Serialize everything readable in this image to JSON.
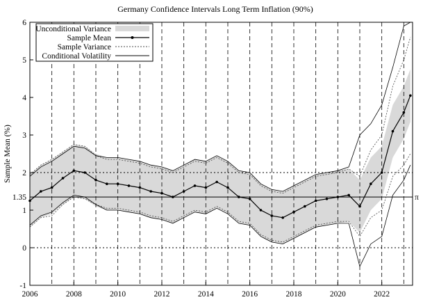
{
  "chart_data": {
    "type": "line",
    "title": "Germany Confidence Intervals Long Term Inflation (90%)",
    "xlabel": "",
    "ylabel": "Sample Mean (%)",
    "xlim": [
      2006,
      2023.4
    ],
    "ylim": [
      -1,
      6
    ],
    "x_ticks": [
      2006,
      2008,
      2010,
      2012,
      2014,
      2016,
      2018,
      2020,
      2022
    ],
    "y_ticks": [
      -1,
      0,
      1,
      2,
      3,
      4,
      5,
      6
    ],
    "y_tick_extra": {
      "value": 1.35,
      "label": "1.35"
    },
    "right_marker": {
      "value": 1.35,
      "label": "π"
    },
    "vertical_dashed_lines": [
      2007,
      2008,
      2009,
      2010,
      2011,
      2012,
      2013,
      2014,
      2015,
      2016,
      2017,
      2018,
      2019,
      2020,
      2021,
      2022,
      2023
    ],
    "horizontal_dotted_lines": [
      0,
      2
    ],
    "horizontal_solid_line": 1.35,
    "legend": {
      "placement": "top-left",
      "entries": [
        "Unconditional Variance",
        "Sample Mean",
        "Sample Variance",
        "Conditional Volatility"
      ]
    },
    "series": [
      {
        "name": "Sample Mean",
        "x": [
          2006.0,
          2006.5,
          2007.0,
          2007.5,
          2008.0,
          2008.5,
          2009.0,
          2009.5,
          2010.0,
          2010.5,
          2011.0,
          2011.5,
          2012.0,
          2012.5,
          2013.0,
          2013.5,
          2014.0,
          2014.5,
          2015.0,
          2015.5,
          2016.0,
          2016.5,
          2017.0,
          2017.5,
          2018.0,
          2018.5,
          2019.0,
          2019.5,
          2020.0,
          2020.5,
          2021.0,
          2021.5,
          2022.0,
          2022.5,
          2023.0,
          2023.3
        ],
        "values": [
          1.25,
          1.5,
          1.6,
          1.85,
          2.05,
          2.0,
          1.8,
          1.7,
          1.7,
          1.65,
          1.6,
          1.5,
          1.45,
          1.35,
          1.5,
          1.65,
          1.6,
          1.75,
          1.6,
          1.35,
          1.3,
          1.0,
          0.85,
          0.8,
          0.95,
          1.1,
          1.25,
          1.3,
          1.35,
          1.4,
          1.1,
          1.7,
          2.0,
          3.1,
          3.6,
          4.05
        ]
      },
      {
        "name": "Unconditional Variance",
        "x": [
          2006.0,
          2006.5,
          2007.0,
          2007.5,
          2008.0,
          2008.5,
          2009.0,
          2009.5,
          2010.0,
          2010.5,
          2011.0,
          2011.5,
          2012.0,
          2012.5,
          2013.0,
          2013.5,
          2014.0,
          2014.5,
          2015.0,
          2015.5,
          2016.0,
          2016.5,
          2017.0,
          2017.5,
          2018.0,
          2018.5,
          2019.0,
          2019.5,
          2020.0,
          2020.5,
          2021.0,
          2021.5,
          2022.0,
          2022.5,
          2023.0,
          2023.3
        ],
        "upper": [
          1.95,
          2.2,
          2.35,
          2.55,
          2.75,
          2.7,
          2.5,
          2.4,
          2.4,
          2.35,
          2.3,
          2.2,
          2.15,
          2.05,
          2.2,
          2.35,
          2.3,
          2.45,
          2.3,
          2.05,
          2.0,
          1.7,
          1.55,
          1.5,
          1.65,
          1.8,
          1.95,
          2.0,
          2.05,
          2.1,
          1.8,
          2.4,
          2.7,
          3.8,
          4.3,
          4.75
        ],
        "lower": [
          0.55,
          0.8,
          0.9,
          1.15,
          1.35,
          1.3,
          1.1,
          1.0,
          1.0,
          0.95,
          0.9,
          0.8,
          0.75,
          0.65,
          0.8,
          0.95,
          0.9,
          1.05,
          0.9,
          0.65,
          0.6,
          0.3,
          0.15,
          0.1,
          0.25,
          0.4,
          0.55,
          0.6,
          0.65,
          0.7,
          0.4,
          1.0,
          1.3,
          2.4,
          2.9,
          3.35
        ]
      },
      {
        "name": "Sample Variance",
        "x": [
          2006.0,
          2006.5,
          2007.0,
          2007.5,
          2008.0,
          2008.5,
          2009.0,
          2009.5,
          2010.0,
          2010.5,
          2011.0,
          2011.5,
          2012.0,
          2012.5,
          2013.0,
          2013.5,
          2014.0,
          2014.5,
          2015.0,
          2015.5,
          2016.0,
          2016.5,
          2017.0,
          2017.5,
          2018.0,
          2018.5,
          2019.0,
          2019.5,
          2020.0,
          2020.5,
          2021.0,
          2021.5,
          2022.0,
          2022.5,
          2023.0,
          2023.3
        ],
        "upper": [
          1.95,
          2.2,
          2.35,
          2.55,
          2.75,
          2.7,
          2.45,
          2.35,
          2.35,
          2.3,
          2.25,
          2.15,
          2.1,
          2.0,
          2.15,
          2.3,
          2.25,
          2.4,
          2.25,
          2.0,
          1.95,
          1.65,
          1.5,
          1.45,
          1.6,
          1.75,
          1.9,
          1.95,
          2.0,
          2.1,
          1.9,
          2.6,
          3.0,
          4.3,
          5.0,
          5.6
        ],
        "lower": [
          0.55,
          0.8,
          0.85,
          1.15,
          1.35,
          1.3,
          1.15,
          1.05,
          1.05,
          1.0,
          0.95,
          0.85,
          0.8,
          0.7,
          0.85,
          1.0,
          0.95,
          1.1,
          0.95,
          0.7,
          0.65,
          0.35,
          0.2,
          0.15,
          0.3,
          0.45,
          0.6,
          0.65,
          0.7,
          0.7,
          0.3,
          0.8,
          1.0,
          1.9,
          2.2,
          2.5
        ]
      },
      {
        "name": "Conditional Volatility",
        "x": [
          2006.0,
          2006.5,
          2007.0,
          2007.5,
          2008.0,
          2008.5,
          2009.0,
          2009.5,
          2010.0,
          2010.5,
          2011.0,
          2011.5,
          2012.0,
          2012.5,
          2013.0,
          2013.5,
          2014.0,
          2014.5,
          2015.0,
          2015.5,
          2016.0,
          2016.5,
          2017.0,
          2017.5,
          2018.0,
          2018.5,
          2019.0,
          2019.5,
          2020.0,
          2020.5,
          2021.0,
          2021.5,
          2022.0,
          2022.5,
          2023.0,
          2023.3
        ],
        "upper": [
          1.9,
          2.15,
          2.3,
          2.5,
          2.7,
          2.65,
          2.45,
          2.4,
          2.4,
          2.35,
          2.3,
          2.2,
          2.15,
          2.05,
          2.2,
          2.35,
          2.3,
          2.45,
          2.3,
          2.05,
          2.0,
          1.7,
          1.55,
          1.5,
          1.65,
          1.8,
          1.95,
          2.0,
          2.05,
          2.15,
          3.0,
          3.3,
          3.8,
          4.8,
          5.9,
          6.0
        ],
        "lower": [
          0.6,
          0.85,
          0.95,
          1.2,
          1.4,
          1.35,
          1.15,
          1.0,
          1.0,
          0.95,
          0.9,
          0.8,
          0.75,
          0.65,
          0.8,
          0.95,
          0.9,
          1.05,
          0.9,
          0.65,
          0.6,
          0.3,
          0.15,
          0.1,
          0.25,
          0.4,
          0.55,
          0.6,
          0.65,
          0.65,
          -0.5,
          0.1,
          0.3,
          1.4,
          1.8,
          2.2
        ]
      }
    ]
  }
}
